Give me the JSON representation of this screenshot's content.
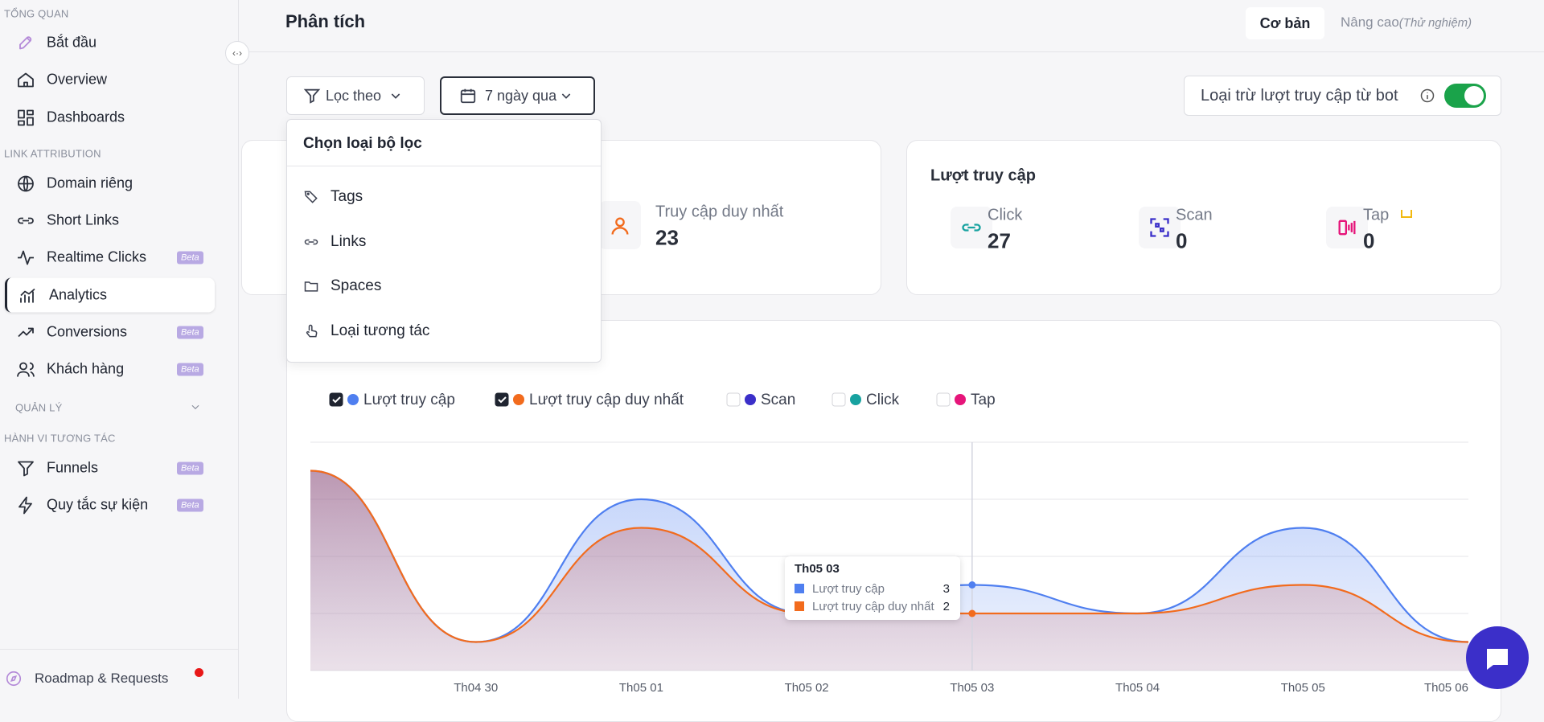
{
  "sidebar": {
    "sections": [
      {
        "title": "TỔNG QUAN",
        "items": [
          {
            "label": "Bắt đầu"
          },
          {
            "label": "Overview"
          },
          {
            "label": "Dashboards"
          }
        ]
      },
      {
        "title": "LINK ATTRIBUTION",
        "items": [
          {
            "label": "Domain riêng"
          },
          {
            "label": "Short Links"
          },
          {
            "label": "Realtime Clicks",
            "badge": "Beta"
          },
          {
            "label": "Analytics",
            "active": true
          },
          {
            "label": "Conversions",
            "badge": "Beta"
          },
          {
            "label": "Khách hàng",
            "badge": "Beta"
          }
        ]
      },
      {
        "title": "QUẢN LÝ",
        "items": []
      },
      {
        "title": "HÀNH VI TƯƠNG TÁC",
        "items": [
          {
            "label": "Funnels",
            "badge": "Beta"
          },
          {
            "label": "Quy tắc sự kiện",
            "badge": "Beta"
          }
        ]
      }
    ],
    "footer": "Roadmap & Requests"
  },
  "header": {
    "title": "Phân tích",
    "tabs": [
      "Cơ bản",
      "Nâng cao"
    ],
    "tab_note": "(Thử nghiệm)"
  },
  "filters": {
    "filter_button": "Lọc theo",
    "date_button": "7 ngày qua",
    "bot_toggle": "Loại trừ lượt truy cập từ bot"
  },
  "dropdown": {
    "title": "Chọn loại bộ lọc",
    "options": [
      "Tags",
      "Links",
      "Spaces",
      "Loại tương tác"
    ]
  },
  "cards": {
    "unique": {
      "label": "Truy cập duy nhất",
      "value": 23
    },
    "visits": {
      "title": "Lượt truy cập",
      "metrics": [
        {
          "label": "Click",
          "value": 27
        },
        {
          "label": "Scan",
          "value": 0
        },
        {
          "label": "Tap",
          "value": 0
        }
      ]
    }
  },
  "chart_data": {
    "type": "line",
    "categories": [
      null,
      "Th04 30",
      "Th05 01",
      "Th05 02",
      "Th05 03",
      "Th05 04",
      "Th05 05",
      "Th05 06"
    ],
    "series": [
      {
        "name": "Lượt truy cập",
        "color": "#4f7ff0",
        "checked": true,
        "values": [
          7,
          1,
          6,
          2,
          3,
          2,
          5,
          1
        ]
      },
      {
        "name": "Lượt truy cập duy nhất",
        "color": "#f26b1d",
        "checked": true,
        "values": [
          7,
          1,
          5,
          2,
          2,
          2,
          3,
          1
        ]
      },
      {
        "name": "Scan",
        "color": "#3b2fc9",
        "checked": false
      },
      {
        "name": "Click",
        "color": "#17a2a0",
        "checked": false
      },
      {
        "name": "Tap",
        "color": "#e6157a",
        "checked": false
      }
    ],
    "ylim": [
      0,
      8
    ],
    "yticks": [
      0,
      2,
      4,
      6,
      8
    ],
    "grid": true,
    "highlight": 4
  }
}
